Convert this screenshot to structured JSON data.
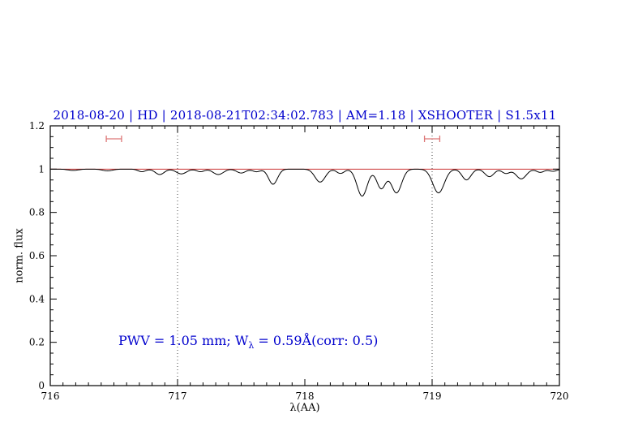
{
  "chart_data": {
    "type": "line",
    "title": "2018-08-20 | HD | 2018-08-21T02:34:02.783 | AM=1.18 | XSHOOTER | S1.5x11",
    "title_color": "#0000cd",
    "xlabel": "λ(AA)",
    "ylabel": "norm. flux",
    "xlim": [
      716,
      720
    ],
    "ylim": [
      0,
      1.2
    ],
    "x_tick_values": [
      716,
      717,
      718,
      719,
      720
    ],
    "x_tick_labels": [
      "716",
      "717",
      "718",
      "719",
      "720"
    ],
    "y_tick_values": [
      0,
      0.2,
      0.4,
      0.6,
      0.8,
      1,
      1.2
    ],
    "y_tick_labels": [
      "0",
      "0.2",
      "0.4",
      "0.6",
      "0.8",
      "1",
      "1.2"
    ],
    "x_minor_step": 0.1,
    "y_minor_step": 0.05,
    "grid": "off",
    "legend": "none",
    "guide_lines_x": [
      717,
      719
    ],
    "guide_line_color": "#444444",
    "continuum_line": {
      "y": 1.0,
      "color": "#cc3333"
    },
    "range_markers": {
      "color": "#dd7777",
      "y": 1.14,
      "items": [
        {
          "center": 716.5,
          "half_width": 0.06
        },
        {
          "center": 719.0,
          "half_width": 0.06
        }
      ]
    },
    "spectrum": {
      "color": "#000000",
      "continuum_level": 1.0,
      "sample_step": 0.01,
      "absorption_features": [
        {
          "center": 716.18,
          "depth": 0.006,
          "sigma": 0.04
        },
        {
          "center": 716.45,
          "depth": 0.008,
          "sigma": 0.04
        },
        {
          "center": 716.72,
          "depth": 0.012,
          "sigma": 0.03
        },
        {
          "center": 716.86,
          "depth": 0.025,
          "sigma": 0.035
        },
        {
          "center": 717.03,
          "depth": 0.022,
          "sigma": 0.04
        },
        {
          "center": 717.18,
          "depth": 0.012,
          "sigma": 0.03
        },
        {
          "center": 717.32,
          "depth": 0.025,
          "sigma": 0.04
        },
        {
          "center": 717.5,
          "depth": 0.018,
          "sigma": 0.035
        },
        {
          "center": 717.62,
          "depth": 0.012,
          "sigma": 0.03
        },
        {
          "center": 717.75,
          "depth": 0.07,
          "sigma": 0.035
        },
        {
          "center": 718.12,
          "depth": 0.06,
          "sigma": 0.04
        },
        {
          "center": 718.28,
          "depth": 0.02,
          "sigma": 0.03
        },
        {
          "center": 718.45,
          "depth": 0.125,
          "sigma": 0.04
        },
        {
          "center": 718.6,
          "depth": 0.09,
          "sigma": 0.035
        },
        {
          "center": 718.72,
          "depth": 0.11,
          "sigma": 0.04
        },
        {
          "center": 719.05,
          "depth": 0.11,
          "sigma": 0.045
        },
        {
          "center": 719.27,
          "depth": 0.05,
          "sigma": 0.035
        },
        {
          "center": 719.45,
          "depth": 0.035,
          "sigma": 0.035
        },
        {
          "center": 719.58,
          "depth": 0.02,
          "sigma": 0.03
        },
        {
          "center": 719.7,
          "depth": 0.045,
          "sigma": 0.04
        },
        {
          "center": 719.85,
          "depth": 0.015,
          "sigma": 0.03
        },
        {
          "center": 719.95,
          "depth": 0.01,
          "sigma": 0.03
        }
      ]
    },
    "annotation": {
      "color": "#0000cd",
      "prefix": "PWV = 1.05 mm; W",
      "sub": "λ",
      "suffix": " = 0.59Å(corr: 0.5)"
    }
  }
}
